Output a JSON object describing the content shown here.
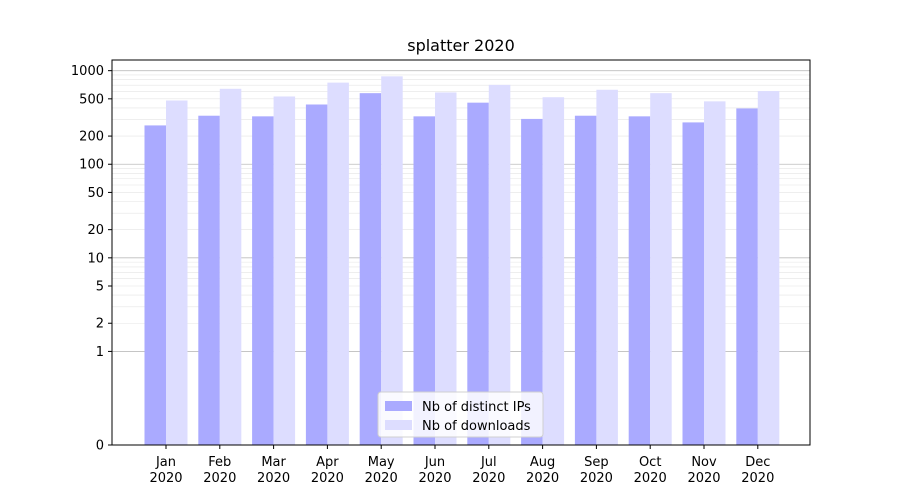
{
  "chart_data": {
    "type": "bar",
    "title": "splatter 2020",
    "xlabel": "",
    "ylabel": "",
    "y_scale": "symlog",
    "ylim": [
      0,
      1300
    ],
    "y_ticks": [
      0,
      1,
      2,
      5,
      10,
      20,
      50,
      100,
      200,
      500,
      1000
    ],
    "grid": true,
    "legend_position": "bottom-center",
    "categories": [
      "Jan\n2020",
      "Feb\n2020",
      "Mar\n2020",
      "Apr\n2020",
      "May\n2020",
      "Jun\n2020",
      "Jul\n2020",
      "Aug\n2020",
      "Sep\n2020",
      "Oct\n2020",
      "Nov\n2020",
      "Dec\n2020"
    ],
    "series": [
      {
        "name": "Nb of distinct IPs",
        "color": "#aaaaff",
        "values": [
          260,
          330,
          325,
          435,
          575,
          325,
          455,
          305,
          330,
          325,
          280,
          395
        ]
      },
      {
        "name": "Nb of downloads",
        "color": "#ddddff",
        "values": [
          480,
          640,
          530,
          745,
          870,
          585,
          705,
          520,
          625,
          575,
          470,
          605
        ]
      }
    ]
  }
}
